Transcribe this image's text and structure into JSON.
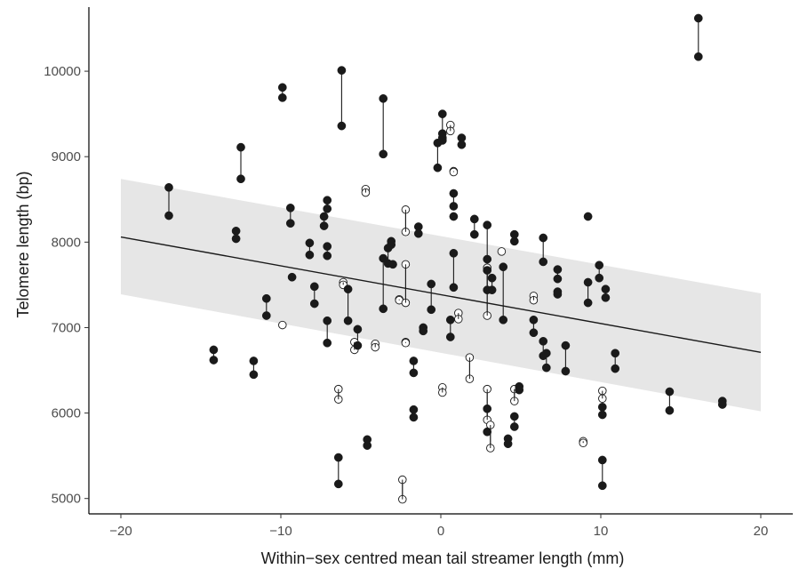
{
  "chart_data": {
    "type": "scatter",
    "xlabel": "Within−sex centred mean tail streamer length (mm)",
    "ylabel": "Telomere length (bp)",
    "xlim": [
      -22,
      22
    ],
    "ylim": [
      4820,
      10750
    ],
    "xticks": [
      -20,
      -10,
      0,
      10,
      20
    ],
    "xtick_labels": [
      "−20",
      "−10",
      "0",
      "10",
      "20"
    ],
    "yticks": [
      5000,
      6000,
      7000,
      8000,
      9000,
      10000
    ],
    "ytick_labels": [
      "5000",
      "6000",
      "7000",
      "8000",
      "9000",
      "10000"
    ],
    "grid": false,
    "legend": "none",
    "regression_line": {
      "x": [
        -20,
        20
      ],
      "y": [
        8060,
        6710
      ]
    },
    "confidence_band": {
      "x": [
        -20,
        20
      ],
      "upper": [
        8740,
        7400
      ],
      "lower": [
        7390,
        6020
      ]
    },
    "filled_points": [
      {
        "x": -17,
        "y": [
          8640,
          8310
        ]
      },
      {
        "x": -14.2,
        "y": [
          6740,
          6620
        ]
      },
      {
        "x": -12.8,
        "y": [
          8130,
          8040
        ]
      },
      {
        "x": -12.5,
        "y": [
          9110,
          8740
        ]
      },
      {
        "x": -11.7,
        "y": [
          6610,
          6450
        ]
      },
      {
        "x": -10.9,
        "y": [
          7340,
          7140
        ]
      },
      {
        "x": -9.9,
        "y": [
          9810,
          9690
        ]
      },
      {
        "x": -9.4,
        "y": [
          8400,
          8220
        ]
      },
      {
        "x": -9.3,
        "y": [
          7590
        ]
      },
      {
        "x": -8.2,
        "y": [
          7990,
          7850
        ]
      },
      {
        "x": -7.9,
        "y": [
          7480,
          7280
        ]
      },
      {
        "x": -7.3,
        "y": [
          8300,
          8190
        ]
      },
      {
        "x": -7.1,
        "y": [
          8490,
          8390
        ]
      },
      {
        "x": -7.1,
        "y": [
          7950,
          7840
        ]
      },
      {
        "x": -7.1,
        "y": [
          7080,
          6820
        ]
      },
      {
        "x": -6.2,
        "y": [
          10010,
          9360
        ]
      },
      {
        "x": -5.8,
        "y": [
          7450,
          7080
        ]
      },
      {
        "x": -5.2,
        "y": [
          6980,
          6790
        ]
      },
      {
        "x": -6.4,
        "y": [
          5480,
          5170
        ]
      },
      {
        "x": -4.6,
        "y": [
          5690,
          5620
        ]
      },
      {
        "x": -3.6,
        "y": [
          9680,
          9030
        ]
      },
      {
        "x": -3.6,
        "y": [
          7810,
          7220
        ]
      },
      {
        "x": -3.3,
        "y": [
          7930,
          7750
        ]
      },
      {
        "x": -3.1,
        "y": [
          8010,
          7970
        ]
      },
      {
        "x": -3.0,
        "y": [
          7740
        ]
      },
      {
        "x": -1.7,
        "y": [
          6610,
          6470
        ]
      },
      {
        "x": -1.7,
        "y": [
          6040,
          5950
        ]
      },
      {
        "x": -1.4,
        "y": [
          8180,
          8100
        ]
      },
      {
        "x": -1.1,
        "y": [
          7000,
          6960
        ]
      },
      {
        "x": -0.6,
        "y": [
          7510,
          7210
        ]
      },
      {
        "x": -0.2,
        "y": [
          9160,
          8870
        ]
      },
      {
        "x": 0.1,
        "y": [
          9500,
          9270
        ]
      },
      {
        "x": 0.1,
        "y": [
          9220,
          9190
        ]
      },
      {
        "x": 0.8,
        "y": [
          8570,
          8420
        ]
      },
      {
        "x": 0.8,
        "y": [
          8300
        ]
      },
      {
        "x": 0.8,
        "y": [
          7870,
          7470
        ]
      },
      {
        "x": 0.6,
        "y": [
          7090,
          6890
        ]
      },
      {
        "x": 1.3,
        "y": [
          9220,
          9140
        ]
      },
      {
        "x": 2.1,
        "y": [
          8270,
          8090
        ]
      },
      {
        "x": 2.9,
        "y": [
          8200,
          7800
        ]
      },
      {
        "x": 2.9,
        "y": [
          7670,
          7440
        ]
      },
      {
        "x": 3.2,
        "y": [
          7580,
          7440
        ]
      },
      {
        "x": 2.9,
        "y": [
          6050,
          5780
        ]
      },
      {
        "x": 3.9,
        "y": [
          7710,
          7090
        ]
      },
      {
        "x": 4.2,
        "y": [
          5700,
          5640
        ]
      },
      {
        "x": 4.6,
        "y": [
          8090,
          8010
        ]
      },
      {
        "x": 4.6,
        "y": [
          5960,
          5840
        ]
      },
      {
        "x": 4.9,
        "y": [
          6310,
          6270
        ]
      },
      {
        "x": 5.8,
        "y": [
          7090,
          6940
        ]
      },
      {
        "x": 6.4,
        "y": [
          8050,
          7770
        ]
      },
      {
        "x": 6.4,
        "y": [
          6840,
          6670
        ]
      },
      {
        "x": 6.6,
        "y": [
          6700,
          6530
        ]
      },
      {
        "x": 7.3,
        "y": [
          7680,
          7570
        ]
      },
      {
        "x": 7.3,
        "y": [
          7420,
          7390
        ]
      },
      {
        "x": 7.8,
        "y": [
          6790,
          6490
        ]
      },
      {
        "x": 9.2,
        "y": [
          8300
        ]
      },
      {
        "x": 9.2,
        "y": [
          7530,
          7290
        ]
      },
      {
        "x": 9.9,
        "y": [
          7730,
          7580
        ]
      },
      {
        "x": 10.3,
        "y": [
          7450,
          7350
        ]
      },
      {
        "x": 10.1,
        "y": [
          6070,
          5980
        ]
      },
      {
        "x": 10.1,
        "y": [
          5450,
          5150
        ]
      },
      {
        "x": 10.9,
        "y": [
          6700,
          6520
        ]
      },
      {
        "x": 14.3,
        "y": [
          6250,
          6030
        ]
      },
      {
        "x": 16.1,
        "y": [
          10620,
          10170
        ]
      },
      {
        "x": 17.6,
        "y": [
          6140,
          6100
        ]
      }
    ],
    "open_points": [
      {
        "x": -9.9,
        "y": [
          7030
        ]
      },
      {
        "x": -6.4,
        "y": [
          6280,
          6160
        ]
      },
      {
        "x": -6.1,
        "y": [
          7530,
          7500
        ]
      },
      {
        "x": -5.4,
        "y": [
          6830,
          6740
        ]
      },
      {
        "x": -4.7,
        "y": [
          8620,
          8580
        ]
      },
      {
        "x": -4.1,
        "y": [
          6810,
          6770
        ]
      },
      {
        "x": -2.6,
        "y": [
          7330,
          7320
        ]
      },
      {
        "x": -2.4,
        "y": [
          5220,
          4990
        ]
      },
      {
        "x": -2.2,
        "y": [
          8380,
          8120
        ]
      },
      {
        "x": -2.2,
        "y": [
          7740,
          7290
        ]
      },
      {
        "x": -2.2,
        "y": [
          6830,
          6820
        ]
      },
      {
        "x": 0.1,
        "y": [
          6300,
          6240
        ]
      },
      {
        "x": 0.6,
        "y": [
          9370,
          9300
        ]
      },
      {
        "x": 0.8,
        "y": [
          8830,
          8820
        ]
      },
      {
        "x": 1.1,
        "y": [
          7170,
          7100
        ]
      },
      {
        "x": 1.8,
        "y": [
          6650,
          6400
        ]
      },
      {
        "x": 2.9,
        "y": [
          6280,
          5920
        ]
      },
      {
        "x": 2.9,
        "y": [
          7700,
          7140
        ]
      },
      {
        "x": 3.1,
        "y": [
          5860,
          5590
        ]
      },
      {
        "x": 3.8,
        "y": [
          7890
        ]
      },
      {
        "x": 4.6,
        "y": [
          6280,
          6140
        ]
      },
      {
        "x": 5.8,
        "y": [
          7370,
          7320
        ]
      },
      {
        "x": 8.9,
        "y": [
          5670,
          5650
        ]
      },
      {
        "x": 10.1,
        "y": [
          6260,
          6170
        ]
      }
    ]
  }
}
